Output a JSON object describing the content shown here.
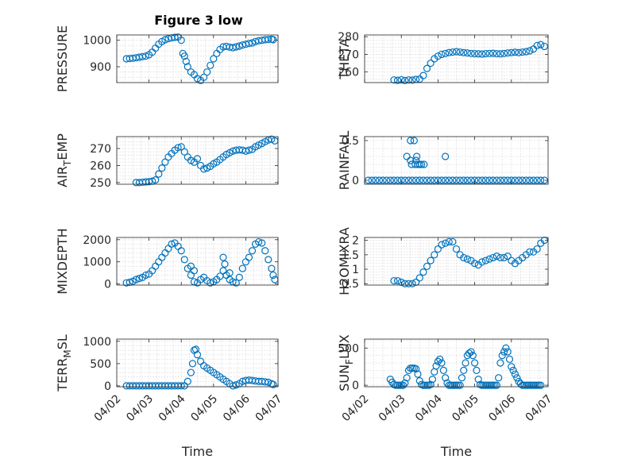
{
  "title": "Figure 3 low",
  "xlabel": "Time",
  "x_ticks": [
    "04/02",
    "04/03",
    "04/04",
    "04/05",
    "04/06",
    "04/07"
  ],
  "marker_color": "#0072BD",
  "chart_data": [
    {
      "type": "scatter",
      "ylabel": "PRESSURE",
      "ylabel_sub": "",
      "ylabel_after": "",
      "yticks": [
        900,
        1000
      ],
      "ylim": [
        840,
        1020
      ],
      "xlim": [
        0,
        5
      ],
      "grid": true,
      "x": [
        0.3,
        0.4,
        0.5,
        0.6,
        0.7,
        0.8,
        0.9,
        1.0,
        1.1,
        1.2,
        1.3,
        1.4,
        1.5,
        1.6,
        1.7,
        1.8,
        1.9,
        2.0,
        2.05,
        2.1,
        2.15,
        2.2,
        2.3,
        2.4,
        2.5,
        2.6,
        2.7,
        2.8,
        2.9,
        3.0,
        3.1,
        3.2,
        3.3,
        3.4,
        3.5,
        3.6,
        3.7,
        3.8,
        3.9,
        4.0,
        4.1,
        4.2,
        4.3,
        4.4,
        4.5,
        4.6,
        4.7,
        4.8,
        4.85
      ],
      "y": [
        930,
        931,
        932,
        934,
        936,
        938,
        940,
        945,
        955,
        970,
        985,
        995,
        1002,
        1006,
        1009,
        1011,
        1012,
        1000,
        950,
        940,
        920,
        900,
        880,
        870,
        855,
        848,
        860,
        880,
        905,
        930,
        950,
        965,
        975,
        977,
        974,
        972,
        975,
        978,
        982,
        985,
        988,
        990,
        995,
        998,
        1000,
        1002,
        1003,
        1004,
        1002
      ]
    },
    {
      "type": "scatter",
      "ylabel": "THETA",
      "ylabel_sub": "",
      "ylabel_after": "",
      "yticks": [
        260,
        270,
        280
      ],
      "ylim": [
        254,
        281
      ],
      "xlim": [
        0,
        5
      ],
      "grid": true,
      "x": [
        0.8,
        0.9,
        1.0,
        1.1,
        1.2,
        1.3,
        1.4,
        1.5,
        1.6,
        1.7,
        1.8,
        1.9,
        2.0,
        2.1,
        2.2,
        2.3,
        2.4,
        2.5,
        2.6,
        2.7,
        2.8,
        2.9,
        3.0,
        3.1,
        3.2,
        3.3,
        3.4,
        3.5,
        3.6,
        3.7,
        3.8,
        3.9,
        4.0,
        4.1,
        4.2,
        4.3,
        4.4,
        4.5,
        4.6,
        4.7,
        4.8,
        4.9
      ],
      "y": [
        255.5,
        255.3,
        255.6,
        255.2,
        255.5,
        255.4,
        255.8,
        256,
        258,
        262,
        265,
        267.5,
        269,
        270,
        270.5,
        271,
        271.3,
        271.5,
        271.3,
        271,
        270.8,
        270.5,
        270.4,
        270.3,
        270.2,
        270.4,
        270.5,
        270.6,
        270.4,
        270.3,
        270.5,
        270.8,
        271,
        271.2,
        271,
        271.3,
        271.5,
        272,
        273,
        275,
        275.5,
        274.5
      ]
    },
    {
      "type": "scatter",
      "ylabel": "AIR",
      "ylabel_sub": "T",
      "ylabel_after": "EMP",
      "yticks": [
        250,
        260,
        270
      ],
      "ylim": [
        249,
        277
      ],
      "xlim": [
        0,
        5
      ],
      "grid": true,
      "x": [
        0.6,
        0.7,
        0.8,
        0.9,
        1.0,
        1.1,
        1.2,
        1.3,
        1.4,
        1.5,
        1.6,
        1.7,
        1.8,
        1.9,
        2.0,
        2.1,
        2.2,
        2.3,
        2.4,
        2.5,
        2.6,
        2.7,
        2.8,
        2.9,
        3.0,
        3.1,
        3.2,
        3.3,
        3.4,
        3.5,
        3.6,
        3.7,
        3.8,
        3.9,
        4.0,
        4.1,
        4.2,
        4.3,
        4.4,
        4.5,
        4.6,
        4.7,
        4.8,
        4.9
      ],
      "y": [
        250,
        250,
        250.2,
        250.4,
        250.5,
        250.8,
        251.5,
        255,
        258.5,
        262,
        265,
        267,
        269,
        270.5,
        271,
        268,
        265,
        263,
        262,
        264,
        260,
        258,
        258.5,
        259.5,
        261,
        262,
        263.5,
        265,
        266.5,
        267.5,
        268.5,
        269,
        269.2,
        269,
        268.5,
        269,
        269.5,
        271,
        272,
        273,
        274,
        275,
        275.5,
        274.5
      ]
    },
    {
      "type": "scatter",
      "ylabel": "RAINFALL",
      "ylabel_sub": "",
      "ylabel_after": "",
      "yticks": [
        0,
        0.5
      ],
      "ylim": [
        -0.05,
        0.55
      ],
      "xlim": [
        0,
        5
      ],
      "grid": true,
      "x": [
        0.1,
        0.2,
        0.3,
        0.4,
        0.5,
        0.6,
        0.7,
        0.8,
        0.9,
        1.0,
        1.1,
        1.2,
        1.3,
        1.4,
        1.5,
        1.6,
        1.7,
        1.8,
        1.9,
        2.0,
        2.1,
        2.2,
        2.3,
        2.4,
        2.5,
        2.6,
        2.7,
        2.8,
        2.9,
        3.0,
        3.1,
        3.2,
        3.3,
        3.4,
        3.5,
        3.6,
        3.7,
        3.8,
        3.9,
        4.0,
        4.1,
        4.2,
        4.3,
        4.4,
        4.5,
        4.6,
        4.7,
        4.8,
        4.9,
        1.15,
        1.25,
        1.35,
        1.28,
        1.38,
        1.45,
        1.5,
        1.55,
        1.42,
        1.62,
        2.2,
        1.25,
        1.4
      ],
      "y": [
        0,
        0,
        0,
        0,
        0,
        0,
        0,
        0,
        0,
        0,
        0,
        0,
        0,
        0,
        0,
        0,
        0,
        0,
        0,
        0,
        0,
        0,
        0,
        0,
        0,
        0,
        0,
        0,
        0,
        0,
        0,
        0,
        0,
        0,
        0,
        0,
        0,
        0,
        0,
        0,
        0,
        0,
        0,
        0,
        0,
        0,
        0,
        0,
        0,
        0.3,
        0.5,
        0.5,
        0.2,
        0.2,
        0.2,
        0.2,
        0.2,
        0.3,
        0.2,
        0.3,
        0.25,
        0.25
      ]
    },
    {
      "type": "scatter",
      "ylabel": "MIXDEPTH",
      "ylabel_sub": "",
      "ylabel_after": "",
      "yticks": [
        0,
        1000,
        2000
      ],
      "ylim": [
        -50,
        2100
      ],
      "xlim": [
        0,
        5
      ],
      "grid": true,
      "x": [
        0.3,
        0.4,
        0.5,
        0.6,
        0.7,
        0.8,
        0.9,
        1.0,
        1.1,
        1.2,
        1.3,
        1.4,
        1.5,
        1.6,
        1.7,
        1.8,
        1.9,
        2.0,
        2.1,
        2.2,
        2.3,
        2.4,
        2.5,
        2.6,
        2.7,
        2.8,
        2.9,
        3.0,
        3.1,
        3.2,
        3.3,
        3.4,
        3.5,
        3.6,
        3.7,
        3.8,
        3.9,
        4.0,
        4.1,
        4.2,
        4.3,
        4.4,
        4.5,
        4.6,
        4.7,
        4.8,
        4.85,
        4.9,
        3.3,
        3.35,
        3.5,
        2.3,
        2.4
      ],
      "y": [
        50,
        80,
        120,
        200,
        250,
        300,
        400,
        450,
        600,
        800,
        1000,
        1200,
        1400,
        1600,
        1800,
        1850,
        1700,
        1500,
        1100,
        700,
        400,
        100,
        50,
        200,
        300,
        150,
        50,
        100,
        200,
        350,
        600,
        400,
        200,
        100,
        50,
        300,
        700,
        1000,
        1200,
        1500,
        1800,
        1900,
        1850,
        1500,
        1100,
        700,
        400,
        200,
        1200,
        900,
        500,
        800,
        600
      ]
    },
    {
      "type": "scatter",
      "ylabel": "H2OMIXRA",
      "ylabel_sub": "",
      "ylabel_after": "",
      "yticks": [
        0.5,
        1,
        1.5,
        2
      ],
      "ylim": [
        0.45,
        2.1
      ],
      "xlim": [
        0,
        5
      ],
      "grid": true,
      "x": [
        0.8,
        0.9,
        1.0,
        1.1,
        1.2,
        1.3,
        1.4,
        1.5,
        1.6,
        1.7,
        1.8,
        1.9,
        2.0,
        2.1,
        2.2,
        2.3,
        2.4,
        2.5,
        2.6,
        2.7,
        2.8,
        2.9,
        3.0,
        3.1,
        3.2,
        3.3,
        3.4,
        3.5,
        3.6,
        3.7,
        3.8,
        3.9,
        4.0,
        4.1,
        4.2,
        4.3,
        4.4,
        4.5,
        4.6,
        4.7,
        4.8,
        4.9
      ],
      "y": [
        0.6,
        0.6,
        0.55,
        0.5,
        0.5,
        0.5,
        0.55,
        0.7,
        0.9,
        1.1,
        1.3,
        1.5,
        1.7,
        1.85,
        1.9,
        1.95,
        1.95,
        1.7,
        1.5,
        1.4,
        1.35,
        1.3,
        1.2,
        1.15,
        1.25,
        1.3,
        1.35,
        1.4,
        1.45,
        1.4,
        1.4,
        1.45,
        1.3,
        1.2,
        1.3,
        1.4,
        1.5,
        1.6,
        1.6,
        1.7,
        1.9,
        2.0
      ]
    },
    {
      "type": "scatter",
      "ylabel": "TERR",
      "ylabel_sub": "M",
      "ylabel_after": "SL",
      "yticks": [
        0,
        500,
        1000
      ],
      "ylim": [
        -20,
        1050
      ],
      "xlim": [
        0,
        5
      ],
      "grid": true,
      "x": [
        0.3,
        0.4,
        0.5,
        0.6,
        0.7,
        0.8,
        0.9,
        1.0,
        1.1,
        1.2,
        1.3,
        1.4,
        1.5,
        1.6,
        1.7,
        1.8,
        1.9,
        2.0,
        2.1,
        2.2,
        2.3,
        2.35,
        2.4,
        2.45,
        2.5,
        2.6,
        2.7,
        2.8,
        2.9,
        3.0,
        3.1,
        3.2,
        3.3,
        3.4,
        3.5,
        3.6,
        3.7,
        3.8,
        3.9,
        4.0,
        4.1,
        4.2,
        4.3,
        4.4,
        4.5,
        4.6,
        4.7,
        4.8,
        4.85
      ],
      "y": [
        0,
        0,
        0,
        0,
        0,
        0,
        0,
        0,
        0,
        0,
        0,
        0,
        0,
        0,
        0,
        0,
        0,
        0,
        0,
        100,
        300,
        500,
        800,
        820,
        700,
        550,
        450,
        400,
        350,
        300,
        250,
        200,
        150,
        100,
        50,
        0,
        20,
        50,
        100,
        120,
        130,
        120,
        110,
        100,
        100,
        90,
        80,
        50,
        30
      ]
    },
    {
      "type": "scatter",
      "ylabel": "SUN",
      "ylabel_sub": "F",
      "ylabel_after": "LUX",
      "yticks": [
        0,
        500
      ],
      "ylim": [
        -20,
        620
      ],
      "xlim": [
        0,
        5
      ],
      "grid": true,
      "x": [
        0.7,
        0.75,
        0.8,
        0.85,
        0.9,
        0.95,
        1.0,
        1.05,
        1.1,
        1.15,
        1.2,
        1.25,
        1.3,
        1.35,
        1.4,
        1.45,
        1.5,
        1.55,
        1.6,
        1.65,
        1.7,
        1.75,
        1.8,
        1.85,
        1.9,
        1.95,
        2.0,
        2.05,
        2.1,
        2.15,
        2.2,
        2.25,
        2.3,
        2.35,
        2.4,
        2.45,
        2.5,
        2.55,
        2.6,
        2.65,
        2.7,
        2.75,
        2.8,
        2.85,
        2.9,
        2.95,
        3.0,
        3.05,
        3.1,
        3.15,
        3.2,
        3.25,
        3.3,
        3.35,
        3.4,
        3.45,
        3.5,
        3.55,
        3.6,
        3.65,
        3.7,
        3.75,
        3.8,
        3.85,
        3.9,
        3.95,
        4.0,
        4.05,
        4.1,
        4.15,
        4.2,
        4.25,
        4.3,
        4.35,
        4.4,
        4.45,
        4.5,
        4.55,
        4.6,
        4.65,
        4.7,
        4.75,
        4.8
      ],
      "y": [
        80,
        40,
        10,
        0,
        0,
        0,
        0,
        0,
        30,
        100,
        200,
        230,
        230,
        230,
        220,
        150,
        60,
        10,
        0,
        0,
        0,
        0,
        10,
        80,
        180,
        260,
        320,
        350,
        300,
        200,
        100,
        30,
        0,
        0,
        0,
        0,
        0,
        0,
        0,
        100,
        200,
        300,
        400,
        430,
        450,
        400,
        300,
        200,
        80,
        10,
        0,
        0,
        0,
        0,
        0,
        0,
        0,
        0,
        0,
        100,
        300,
        400,
        450,
        500,
        450,
        350,
        250,
        200,
        150,
        100,
        50,
        20,
        0,
        0,
        0,
        0,
        0,
        0,
        0,
        0,
        0,
        0,
        0
      ]
    }
  ]
}
